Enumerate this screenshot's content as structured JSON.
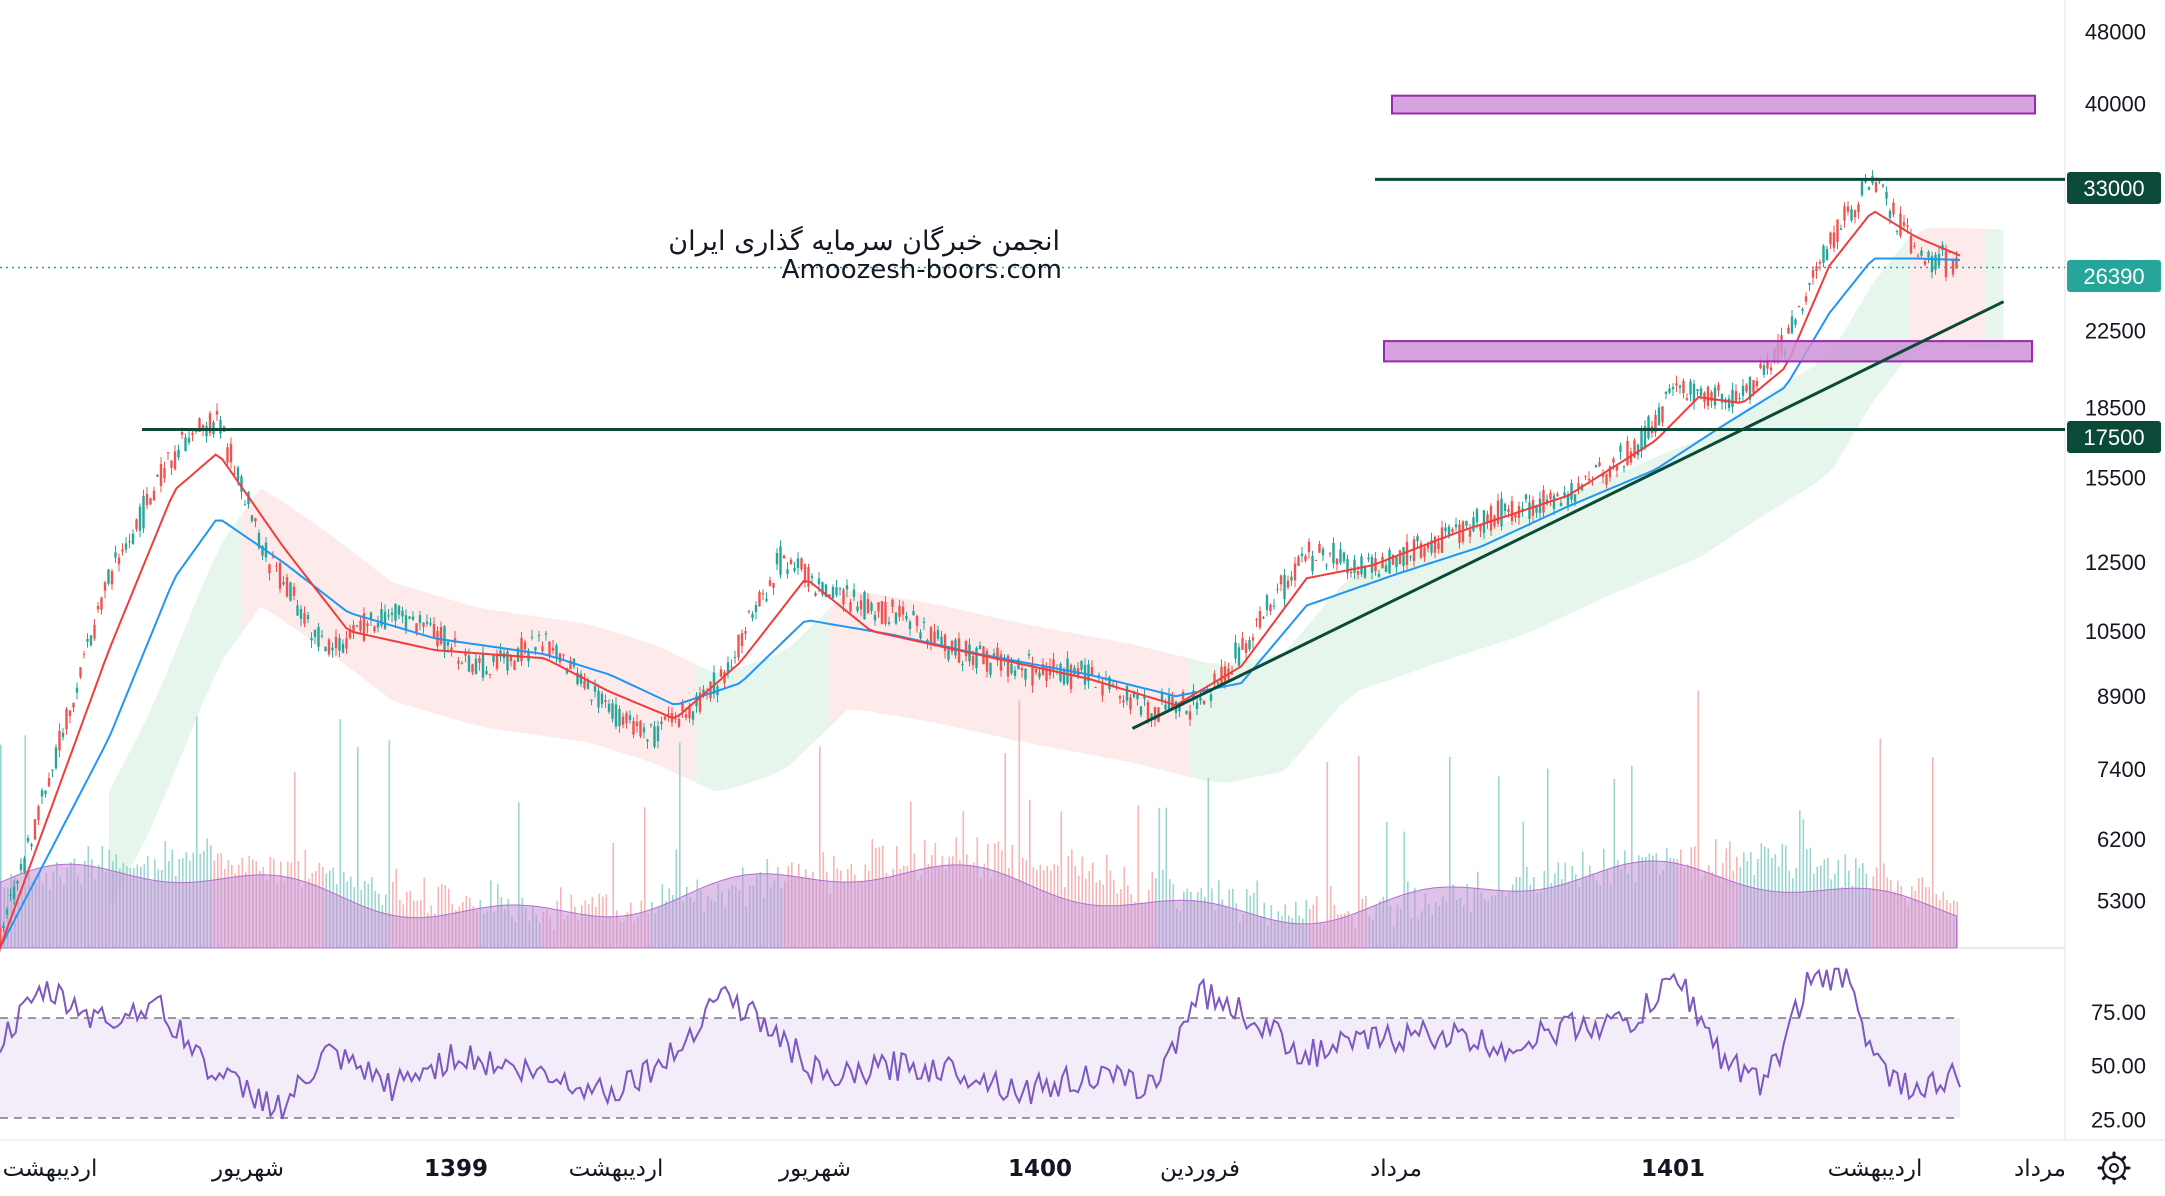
{
  "watermark": {
    "line1": "انجمن خبرگان سرمایه گذاری ایران",
    "line2": "Amoozesh-boors.com"
  },
  "price_axis": [
    "48000",
    "40000",
    "33000",
    "26390",
    "22500",
    "18500",
    "17500",
    "15500",
    "12500",
    "10500",
    "8900",
    "7400",
    "6200",
    "5300"
  ],
  "rsi_axis": [
    "75.00",
    "50.00",
    "25.00"
  ],
  "time_axis": [
    {
      "label": "اردیبهشت",
      "year": false
    },
    {
      "label": "شهریور",
      "year": false
    },
    {
      "label": "1399",
      "year": true
    },
    {
      "label": "اردیبهشت",
      "year": false
    },
    {
      "label": "شهریور",
      "year": false
    },
    {
      "label": "1400",
      "year": true
    },
    {
      "label": "فروردین",
      "year": false
    },
    {
      "label": "مرداد",
      "year": false
    },
    {
      "label": "1401",
      "year": true
    },
    {
      "label": "اردیبهشت",
      "year": false
    },
    {
      "label": "مرداد",
      "year": false
    }
  ],
  "badges": {
    "resistance": "33000",
    "last_price": "26390",
    "support": "17500"
  },
  "colors": {
    "up": "#26a69a",
    "down": "#ef5350",
    "ema_fast": "#ef3d3d",
    "ema_slow": "#2196f3",
    "level_line": "#0b4a38",
    "zone_fill": "#ce93d8",
    "zone_stroke": "#9c27b0",
    "rsi": "#7e57c2",
    "volume_ma": "#c58fd6"
  },
  "chart_data": {
    "type": "candlestick",
    "price_scale": "log",
    "ylim": [
      4700,
      52000
    ],
    "x_periods": [
      "اردیبهشت",
      "شهریور",
      "1399",
      "اردیبهشت",
      "شهریور",
      "1400",
      "فروردین",
      "مرداد",
      "1401",
      "اردیبهشت",
      "مرداد"
    ],
    "close_path": [
      [
        0,
        4800
      ],
      [
        0.05,
        12000
      ],
      [
        0.08,
        16500
      ],
      [
        0.1,
        18000
      ],
      [
        0.12,
        13000
      ],
      [
        0.15,
        10000
      ],
      [
        0.18,
        11000
      ],
      [
        0.2,
        10500
      ],
      [
        0.22,
        9500
      ],
      [
        0.25,
        10200
      ],
      [
        0.28,
        8600
      ],
      [
        0.3,
        8000
      ],
      [
        0.33,
        9200
      ],
      [
        0.36,
        12800
      ],
      [
        0.38,
        11500
      ],
      [
        0.41,
        11000
      ],
      [
        0.44,
        10000
      ],
      [
        0.47,
        9500
      ],
      [
        0.5,
        9400
      ],
      [
        0.53,
        8600
      ],
      [
        0.55,
        8700
      ],
      [
        0.57,
        10000
      ],
      [
        0.6,
        12800
      ],
      [
        0.63,
        12300
      ],
      [
        0.66,
        13200
      ],
      [
        0.69,
        14200
      ],
      [
        0.72,
        14800
      ],
      [
        0.75,
        16500
      ],
      [
        0.77,
        19500
      ],
      [
        0.8,
        19000
      ],
      [
        0.82,
        22000
      ],
      [
        0.84,
        28000
      ],
      [
        0.86,
        33000
      ],
      [
        0.88,
        27500
      ],
      [
        0.9,
        26390
      ]
    ],
    "ema_fast_path": [
      [
        0,
        4700
      ],
      [
        0.05,
        10000
      ],
      [
        0.08,
        15000
      ],
      [
        0.1,
        16500
      ],
      [
        0.13,
        13000
      ],
      [
        0.16,
        10500
      ],
      [
        0.2,
        10000
      ],
      [
        0.25,
        9800
      ],
      [
        0.28,
        9000
      ],
      [
        0.31,
        8400
      ],
      [
        0.34,
        9700
      ],
      [
        0.37,
        12000
      ],
      [
        0.4,
        10500
      ],
      [
        0.44,
        10000
      ],
      [
        0.5,
        9300
      ],
      [
        0.54,
        8700
      ],
      [
        0.57,
        9600
      ],
      [
        0.6,
        12000
      ],
      [
        0.63,
        12400
      ],
      [
        0.67,
        13500
      ],
      [
        0.72,
        14800
      ],
      [
        0.76,
        17000
      ],
      [
        0.78,
        19000
      ],
      [
        0.8,
        18700
      ],
      [
        0.82,
        20500
      ],
      [
        0.84,
        26500
      ],
      [
        0.86,
        30500
      ],
      [
        0.88,
        28500
      ],
      [
        0.9,
        27200
      ]
    ],
    "ema_slow_path": [
      [
        0,
        4700
      ],
      [
        0.05,
        8000
      ],
      [
        0.08,
        12000
      ],
      [
        0.1,
        14000
      ],
      [
        0.13,
        12500
      ],
      [
        0.16,
        11000
      ],
      [
        0.2,
        10300
      ],
      [
        0.25,
        9900
      ],
      [
        0.28,
        9400
      ],
      [
        0.31,
        8700
      ],
      [
        0.34,
        9200
      ],
      [
        0.37,
        10800
      ],
      [
        0.41,
        10400
      ],
      [
        0.45,
        9900
      ],
      [
        0.5,
        9400
      ],
      [
        0.54,
        8900
      ],
      [
        0.57,
        9200
      ],
      [
        0.6,
        11200
      ],
      [
        0.64,
        12100
      ],
      [
        0.68,
        13000
      ],
      [
        0.72,
        14400
      ],
      [
        0.76,
        15800
      ],
      [
        0.79,
        17600
      ],
      [
        0.82,
        19500
      ],
      [
        0.84,
        23500
      ],
      [
        0.86,
        27000
      ],
      [
        0.88,
        27000
      ],
      [
        0.9,
        26900
      ]
    ],
    "horizontal_levels": [
      33000,
      17500
    ],
    "zones": [
      [
        39000,
        40800
      ],
      [
        20800,
        21900
      ]
    ],
    "trendline": [
      [
        0.52,
        8200
      ],
      [
        0.92,
        24200
      ]
    ],
    "rsi": {
      "ylim": [
        20,
        100
      ],
      "upper_band": 70,
      "lower_band": 30,
      "path": [
        [
          0,
          60
        ],
        [
          0.02,
          85
        ],
        [
          0.05,
          70
        ],
        [
          0.07,
          80
        ],
        [
          0.1,
          45
        ],
        [
          0.13,
          30
        ],
        [
          0.15,
          55
        ],
        [
          0.18,
          40
        ],
        [
          0.21,
          55
        ],
        [
          0.25,
          45
        ],
        [
          0.28,
          38
        ],
        [
          0.31,
          55
        ],
        [
          0.33,
          85
        ],
        [
          0.35,
          70
        ],
        [
          0.38,
          42
        ],
        [
          0.41,
          50
        ],
        [
          0.44,
          48
        ],
        [
          0.47,
          38
        ],
        [
          0.5,
          45
        ],
        [
          0.53,
          40
        ],
        [
          0.55,
          85
        ],
        [
          0.57,
          75
        ],
        [
          0.6,
          55
        ],
        [
          0.63,
          62
        ],
        [
          0.66,
          65
        ],
        [
          0.69,
          58
        ],
        [
          0.72,
          68
        ],
        [
          0.75,
          70
        ],
        [
          0.77,
          92
        ],
        [
          0.79,
          55
        ],
        [
          0.81,
          40
        ],
        [
          0.83,
          88
        ],
        [
          0.85,
          92
        ],
        [
          0.86,
          52
        ],
        [
          0.88,
          38
        ],
        [
          0.9,
          45
        ]
      ]
    }
  }
}
